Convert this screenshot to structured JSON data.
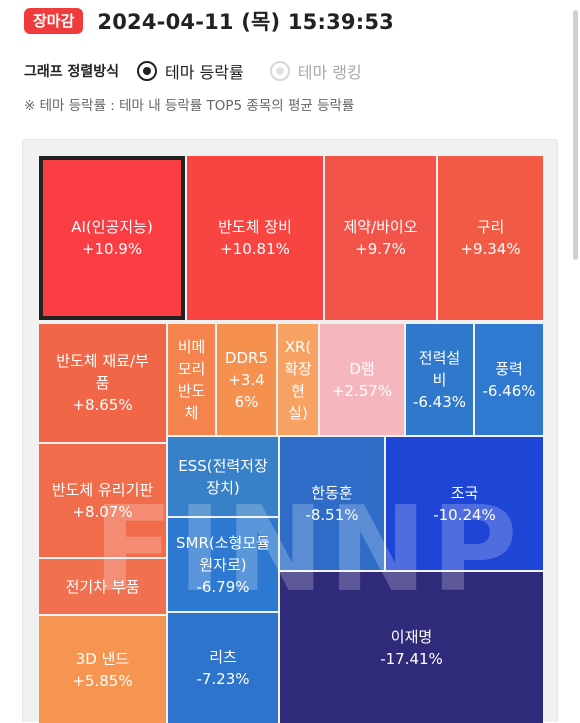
{
  "header": {
    "badge": "장마감",
    "datetime": "2024-04-11 (목) 15:39:53"
  },
  "sort": {
    "label": "그래프 정렬방식",
    "options": [
      {
        "label": "테마 등락률",
        "selected": true
      },
      {
        "label": "테마 랭킹",
        "selected": false
      }
    ]
  },
  "note": "※ 테마 등락률 : 테마 내 등락률 TOP5 종목의 평균 등락률",
  "watermark": "FINNP",
  "themes": [
    {
      "name": "AI(인공지능)",
      "change": "+10.9%",
      "color": "#fa3d43"
    },
    {
      "name": "반도체 장비",
      "change": "+10.81%",
      "color": "#f84541"
    },
    {
      "name": "제약/바이오",
      "change": "+9.7%",
      "color": "#f3544a"
    },
    {
      "name": "구리",
      "change": "+9.34%",
      "color": "#f25a46"
    },
    {
      "name": "반도체 재료/부품",
      "change": "+8.65%",
      "color": "#f16647"
    },
    {
      "name": "비메모리 반도체",
      "change": "",
      "color": "#f5834e"
    },
    {
      "name": "DDR5",
      "change": "+3.46%",
      "color": "#f5904f"
    },
    {
      "name": "XR(확장현실)",
      "change": "",
      "color": "#f7a163"
    },
    {
      "name": "D램",
      "change": "+2.57%",
      "color": "#f5b6bd"
    },
    {
      "name": "전력설비",
      "change": "-6.43%",
      "color": "#2f78cc"
    },
    {
      "name": "풍력",
      "change": "-6.46%",
      "color": "#2f7ad0"
    },
    {
      "name": "반도체 유리기판",
      "change": "+8.07%",
      "color": "#f06c4b"
    },
    {
      "name": "ESS(전력저장장치)",
      "change": "",
      "color": "#3880c8"
    },
    {
      "name": "한동훈",
      "change": "-8.51%",
      "color": "#2e6cc8"
    },
    {
      "name": "조국",
      "change": "-10.24%",
      "color": "#1e45d6"
    },
    {
      "name": "SMR(소형모듈원자로)",
      "change": "-6.79%",
      "color": "#2d78d0"
    },
    {
      "name": "전기차 부품",
      "change": "",
      "color": "#f07050"
    },
    {
      "name": "이재명",
      "change": "-17.41%",
      "color": "#302a7a"
    },
    {
      "name": "3D 낸드",
      "change": "+5.85%",
      "color": "#f69552"
    },
    {
      "name": "리츠",
      "change": "-7.23%",
      "color": "#2f74cc"
    }
  ],
  "tile_lines": [
    [
      "AI(인공지능)",
      "+10.9%"
    ],
    [
      "반도체 장비",
      "+10.81%"
    ],
    [
      "제약/바이오",
      "+9.7%"
    ],
    [
      "구리",
      "+9.34%"
    ],
    [
      "반도체 재료/부",
      "품",
      "+8.65%"
    ],
    [
      "비메",
      "모리",
      "반도",
      "체"
    ],
    [
      "DDR5",
      "+3.4",
      "6%"
    ],
    [
      "XR(",
      "확장",
      "현",
      "실)"
    ],
    [
      "D램",
      "+2.57%"
    ],
    [
      "전력설",
      "비",
      "-6.43%"
    ],
    [
      "풍력",
      "-6.46%"
    ],
    [
      "반도체 유리기판",
      "+8.07%"
    ],
    [
      "ESS(전력저장",
      "장치)"
    ],
    [
      "한동훈",
      "-8.51%"
    ],
    [
      "조국",
      "-10.24%"
    ],
    [
      "SMR(소형모듈",
      "원자로)",
      "-6.79%"
    ],
    [
      "전기차 부품"
    ],
    [
      "이재명",
      "-17.41%"
    ],
    [
      "3D 낸드",
      "+5.85%"
    ],
    [
      "리츠",
      "-7.23%"
    ]
  ]
}
